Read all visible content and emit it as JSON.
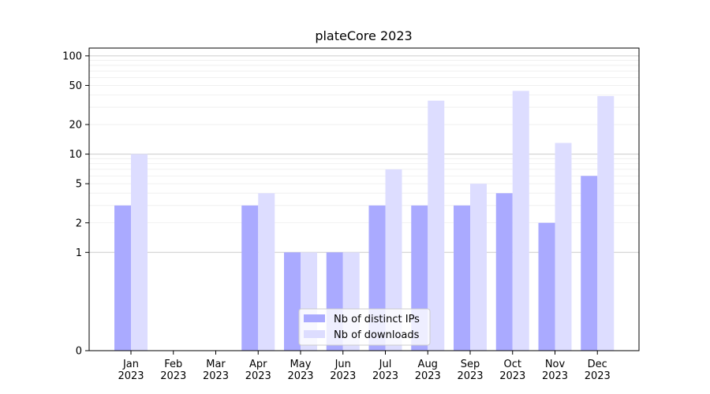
{
  "chart_data": {
    "type": "bar",
    "title": "plateCore 2023",
    "xlabel": "",
    "ylabel": "",
    "yscale": "symlog",
    "ylim": [
      0,
      120
    ],
    "y_ticks": [
      0,
      1,
      2,
      5,
      10,
      20,
      50,
      100
    ],
    "y_tick_labels": [
      "0",
      "1",
      "2",
      "5",
      "10",
      "20",
      "50",
      "100"
    ],
    "grid": true,
    "legend_position": "bottom-center",
    "categories": [
      "Jan\n2023",
      "Feb\n2023",
      "Mar\n2023",
      "Apr\n2023",
      "May\n2023",
      "Jun\n2023",
      "Jul\n2023",
      "Aug\n2023",
      "Sep\n2023",
      "Oct\n2023",
      "Nov\n2023",
      "Dec\n2023"
    ],
    "series": [
      {
        "name": "Nb of distinct IPs",
        "color": "#aaaaff",
        "values": [
          3,
          0,
          0,
          3,
          1,
          1,
          3,
          3,
          3,
          4,
          2,
          6
        ]
      },
      {
        "name": "Nb of downloads",
        "color": "#ddddff",
        "values": [
          10,
          0,
          0,
          4,
          1,
          1,
          7,
          35,
          5,
          44,
          13,
          39
        ]
      }
    ]
  }
}
